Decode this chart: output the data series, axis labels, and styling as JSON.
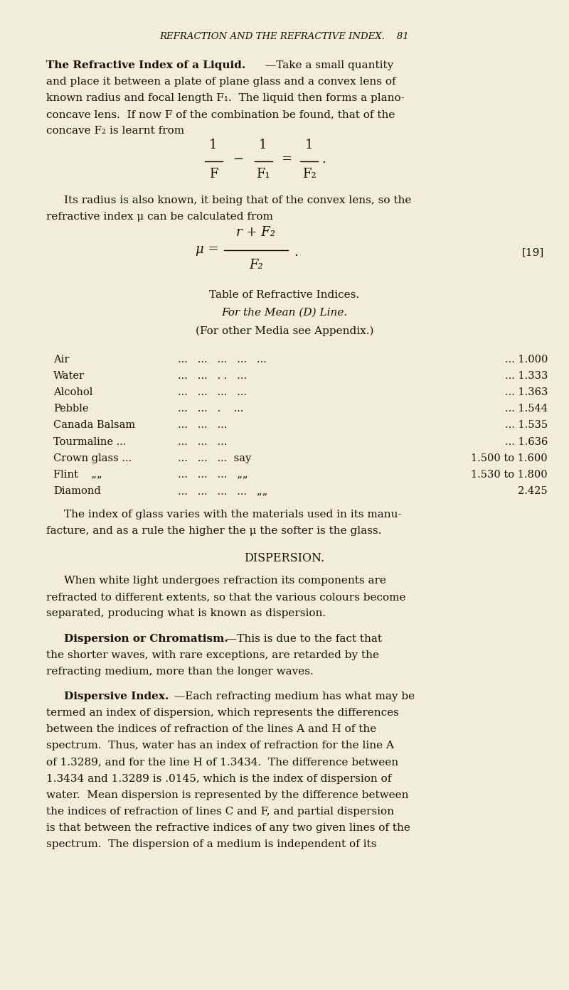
{
  "bg_color": "#f0edd8",
  "text_color": "#1a1008",
  "fig_w": 8.0,
  "fig_h": 13.93,
  "dpi": 100,
  "header": "REFRACTION AND THE REFRACTIVE INDEX.    81",
  "lines_intro": [
    [
      "bold",
      "The Refractive Index of a Liquid."
    ],
    [
      "normal",
      "—Take a small quantity"
    ],
    [
      "normal",
      "and place it between a plate of plane glass and a convex lens of"
    ],
    [
      "normal",
      "known radius and focal length F₁.  The liquid then forms a plano-"
    ],
    [
      "normal",
      "concave lens.  If now F of the combination be found, that of the"
    ],
    [
      "normal",
      "concave F₂ is learnt from"
    ]
  ],
  "eq1_fracs": [
    "F",
    "F₁",
    "F₂"
  ],
  "eq1_ops": [
    "—",
    "—",
    "=",
    "—",
    "."
  ],
  "para_eq1": [
    "Its radius is also known, it being that of the convex lens, so the",
    "refractive index μ can be calculated from"
  ],
  "eq2_num": "r + F₂",
  "eq2_den": "F₂",
  "eq2_label": "[19]",
  "table_title1": "Table of Refractive Indices.",
  "table_title2": "For the Mean (D) Line.",
  "table_title3": "(For other Media see Appendix.)",
  "table_rows": [
    [
      "Air",
      "...   ...   ...   ...   ...",
      "... 1.000"
    ],
    [
      "Water",
      "...   ...   . .   ...",
      "... 1.333"
    ],
    [
      "Alcohol",
      "...   ...   ...   ...",
      "... 1.363"
    ],
    [
      "Pebble",
      "...   ...   .    ...",
      "... 1.544"
    ],
    [
      "Canada Balsam",
      "...   ...   ...",
      "... 1.535"
    ],
    [
      "Tourmaline ...",
      "...   ...   ...",
      "... 1.636"
    ],
    [
      "Crown glass ...",
      "...   ...   ...  say",
      "1.500 to 1.600"
    ],
    [
      "Flint    „„",
      "...   ...   ...   „„",
      "1.530 to 1.800"
    ],
    [
      "Diamond",
      "...   ...   ...   ...   „„",
      "2.425"
    ]
  ],
  "para_glass": [
    "The index of glass varies with the materials used in its manu-",
    "facture, and as a rule the higher the μ the softer is the glass."
  ],
  "section_disp": "DISPERSION.",
  "para_disp": [
    "When white light undergoes refraction its components are",
    "refracted to different extents, so that the various colours become",
    "separated, producing what is known as dispersion."
  ],
  "bold_chrom": "Dispersion or Chromatism.",
  "para_chrom": "—This is due to the fact that the shorter waves, with rare exceptions, are retarded by the refracting medium, more than the longer waves.",
  "para_chrom_lines": [
    "—This is due to the fact that",
    "the shorter waves, with rare exceptions, are retarded by the",
    "refracting medium, more than the longer waves."
  ],
  "bold_disp_idx": "Dispersive Index.",
  "para_disp_idx_lines": [
    "—Each refracting medium has what may be",
    "termed an index of dispersion, which represents the differences",
    "between the indices of refraction of the lines A and H of the",
    "spectrum.  Thus, water has an index of refraction for the line A",
    "of 1.3289, and for the line H of 1.3434.  The difference between",
    "1.3434 and 1.3289 is .0145, which is the index of dispersion of",
    "water.  Mean dispersion is represented by the difference between",
    "the indices of refraction of lines C and F, and partial dispersion",
    "is that between the refractive indices of any two given lines of the",
    "spectrum.  The dispersion of a medium is independent of its"
  ]
}
